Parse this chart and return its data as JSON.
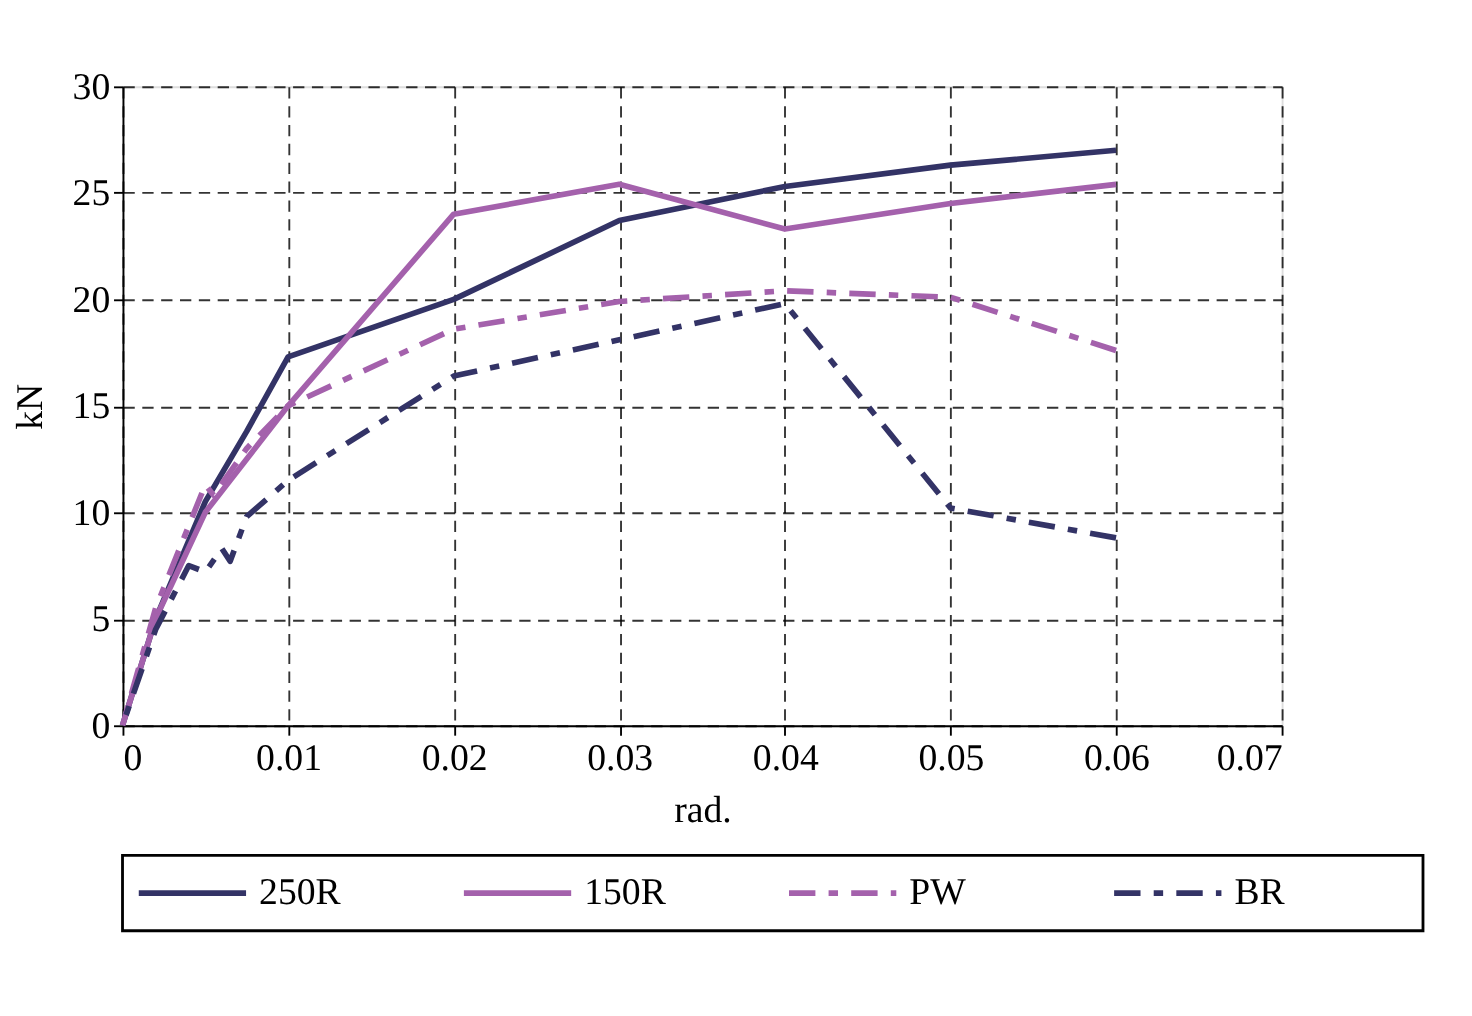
{
  "chart_data": {
    "type": "line",
    "xlabel": "rad.",
    "ylabel": "kN",
    "xlim": [
      0,
      0.07
    ],
    "xticks": [
      {
        "value": 0,
        "label": "0"
      },
      0.01,
      0.02,
      0.03,
      0.04,
      0.05,
      0.06,
      0.07
    ],
    "ylim": [
      0,
      30
    ],
    "yticks": [
      0,
      5,
      10,
      15,
      20,
      25,
      30
    ],
    "grid": true,
    "legend": "bottom",
    "marker": "none",
    "series": [
      {
        "name": "250R",
        "color": "#333366",
        "line_style": "solid",
        "x": [
          0,
          0.002,
          0.005,
          0.0075,
          0.01,
          0.02,
          0.03,
          0.04,
          0.05,
          0.06
        ],
        "values": [
          0,
          5,
          10.5,
          13.8,
          17.3,
          20,
          23.7,
          25.3,
          26.3,
          27
        ]
      },
      {
        "name": "150R",
        "color": "#a461ac",
        "line_style": "solid",
        "x": [
          0,
          0.002,
          0.005,
          0.01,
          0.02,
          0.03,
          0.04,
          0.05,
          0.06
        ],
        "values": [
          0,
          5,
          10,
          15,
          24,
          25.4,
          23.3,
          24.5,
          25.4
        ]
      },
      {
        "name": "PW",
        "color": "#a461ac",
        "line_style": "dashdot",
        "x": [
          0,
          0.002,
          0.005,
          0.0055,
          0.0075,
          0.01,
          0.02,
          0.03,
          0.04,
          0.05,
          0.06
        ],
        "values": [
          0,
          5.5,
          11.3,
          10.8,
          13,
          15,
          18.6,
          19.9,
          20.4,
          20.1,
          17.6
        ]
      },
      {
        "name": "BR",
        "color": "#333366",
        "line_style": "dashdot",
        "x": [
          0,
          0.002,
          0.004,
          0.005,
          0.006,
          0.0065,
          0.0075,
          0.01,
          0.02,
          0.03,
          0.04,
          0.05,
          0.06
        ],
        "values": [
          0,
          4.5,
          7.5,
          7.2,
          8.3,
          7.7,
          9.8,
          11.5,
          16.4,
          18.1,
          19.8,
          10.2,
          8.8
        ]
      }
    ]
  }
}
